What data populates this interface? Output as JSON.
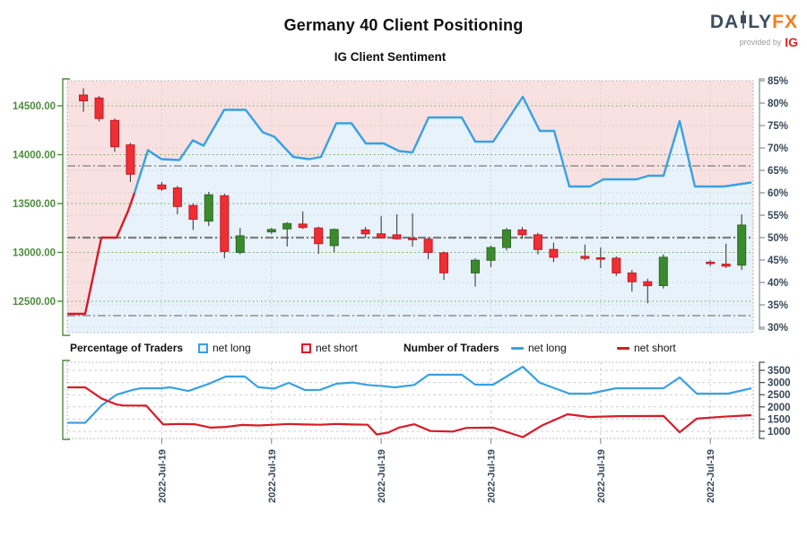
{
  "header": {
    "title": "Germany 40 Client Positioning",
    "subtitle": "IG Client Sentiment",
    "logo": {
      "daily": "DA",
      "ly": "LY",
      "fx": "FX",
      "provided_by": "provided by",
      "ig": "IG"
    }
  },
  "legend": {
    "pct_header": "Percentage of Traders",
    "num_header": "Number of Traders",
    "net_long": "net long",
    "net_short": "net short"
  },
  "colors": {
    "accent_blue": "#38a1e4",
    "accent_red": "#d81a28",
    "candle_red": "#ef2e35",
    "candle_red_edge": "#c41a22",
    "candle_green": "#3c8a2e",
    "candle_green_edge": "#2c6a21",
    "wick": "#3e3e3e",
    "pink_fill": "#f9e1e1",
    "blue_fill": "#e7f2fb",
    "axis_green": "#4c8c3c",
    "axis_navy": "#39485a",
    "grid_green": "#6aa74f",
    "grid_gray": "#cfcfcf",
    "ref_gray": "#7d7d7d",
    "border_gray": "#aaaaaa"
  },
  "chart_data": [
    {
      "type": "candlestick+line",
      "title": "Price candles with IG client sentiment (% net long)",
      "y_left": {
        "axis": "price",
        "tick_labels": [
          "14500.00",
          "14000.00",
          "13500.00",
          "13000.00",
          "12500.00"
        ],
        "tick_values": [
          14500,
          14000,
          13500,
          13000,
          12500
        ]
      },
      "y_right": {
        "axis": "percent",
        "range": [
          30,
          85
        ],
        "tick_labels": [
          "85%",
          "80%",
          "75%",
          "70%",
          "65%",
          "60%",
          "55%",
          "50%",
          "45%",
          "40%",
          "35%",
          "30%"
        ],
        "tick_values": [
          85,
          80,
          75,
          70,
          65,
          60,
          55,
          50,
          45,
          40,
          35,
          30
        ]
      },
      "grid_pct": [
        80,
        75,
        70,
        65,
        60,
        55,
        50,
        45,
        40,
        35,
        30
      ],
      "reference_lines_pct": [
        66,
        50,
        32.6
      ],
      "x_labels": [
        "2022-Jul-19",
        "2022-Jul-19",
        "2022-Jul-19",
        "2022-Jul-19",
        "2022-Jul-19",
        "2022-Jul-19"
      ],
      "x_tick_slots": [
        5,
        12,
        19,
        26,
        33,
        40
      ],
      "candles_format": [
        "slot",
        "open",
        "high",
        "low",
        "close"
      ],
      "candles": [
        [
          0,
          14610,
          14680,
          14440,
          14550
        ],
        [
          1,
          14580,
          14600,
          14340,
          14370
        ],
        [
          2,
          14350,
          14370,
          14030,
          14080
        ],
        [
          3,
          14100,
          14120,
          13720,
          13800
        ],
        [
          5,
          13690,
          13720,
          13630,
          13650
        ],
        [
          6,
          13660,
          13680,
          13390,
          13470
        ],
        [
          7,
          13480,
          13500,
          13230,
          13340
        ],
        [
          8,
          13320,
          13620,
          13270,
          13590
        ],
        [
          9,
          13580,
          13600,
          12940,
          13010
        ],
        [
          10,
          13000,
          13250,
          12980,
          13170
        ],
        [
          12,
          13210,
          13250,
          13190,
          13235
        ],
        [
          13,
          13240,
          13310,
          13060,
          13295
        ],
        [
          14,
          13290,
          13420,
          13240,
          13255
        ],
        [
          15,
          13250,
          13265,
          12985,
          13090
        ],
        [
          16,
          13070,
          13245,
          13000,
          13235
        ],
        [
          18,
          13230,
          13260,
          13150,
          13190
        ],
        [
          19,
          13190,
          13370,
          13140,
          13150
        ],
        [
          20,
          13180,
          13390,
          13130,
          13140
        ],
        [
          21,
          13145,
          13400,
          13060,
          13135
        ],
        [
          22,
          13135,
          13150,
          12930,
          13000
        ],
        [
          23,
          12995,
          13010,
          12720,
          12790
        ],
        [
          25,
          12790,
          12940,
          12650,
          12920
        ],
        [
          26,
          12920,
          13070,
          12850,
          13050
        ],
        [
          27,
          13050,
          13250,
          13020,
          13230
        ],
        [
          28,
          13230,
          13260,
          13140,
          13180
        ],
        [
          29,
          13180,
          13200,
          12980,
          13030
        ],
        [
          30,
          13030,
          13100,
          12900,
          12950
        ],
        [
          32,
          12960,
          13080,
          12920,
          12940
        ],
        [
          33,
          12945,
          13050,
          12840,
          12935
        ],
        [
          34,
          12940,
          12960,
          12760,
          12790
        ],
        [
          35,
          12790,
          12820,
          12600,
          12700
        ],
        [
          36,
          12700,
          12730,
          12480,
          12660
        ],
        [
          37,
          12660,
          12980,
          12630,
          12950
        ],
        [
          40,
          12900,
          12920,
          12860,
          12885
        ],
        [
          41,
          12880,
          13090,
          12840,
          12860
        ],
        [
          42,
          12870,
          13390,
          12820,
          13280
        ]
      ],
      "sentiment_pct": {
        "net_short_segment": [
          [
            0,
            33
          ],
          [
            20,
            33
          ],
          [
            38,
            50
          ],
          [
            55,
            50
          ],
          [
            68,
            56
          ],
          [
            75,
            60
          ]
        ],
        "net_long_segment": [
          [
            75,
            60
          ],
          [
            90,
            69.5
          ],
          [
            105,
            67.5
          ],
          [
            125,
            67.3
          ],
          [
            140,
            71.7
          ],
          [
            152,
            70.5
          ],
          [
            175,
            78.5
          ],
          [
            199,
            78.5
          ],
          [
            218,
            73.5
          ],
          [
            231,
            72.5
          ],
          [
            252,
            68
          ],
          [
            270,
            67.5
          ],
          [
            283,
            68
          ],
          [
            300,
            75.5
          ],
          [
            317,
            75.5
          ],
          [
            333,
            71
          ],
          [
            353,
            71
          ],
          [
            370,
            69.3
          ],
          [
            385,
            69
          ],
          [
            403,
            76.8
          ],
          [
            440,
            76.8
          ],
          [
            455,
            71.4
          ],
          [
            475,
            71.4
          ],
          [
            508,
            81.4
          ],
          [
            527,
            73.8
          ],
          [
            543,
            73.8
          ],
          [
            560,
            61.4
          ],
          [
            583,
            61.4
          ],
          [
            598,
            63
          ],
          [
            635,
            63
          ],
          [
            648,
            63.8
          ],
          [
            665,
            63.8
          ],
          [
            683,
            76
          ],
          [
            700,
            61.4
          ],
          [
            732,
            61.4
          ],
          [
            763,
            62.3
          ]
        ]
      }
    },
    {
      "type": "line",
      "title": "Number of traders",
      "y_right": {
        "tick_labels": [
          "3500",
          "3000",
          "2500",
          "2000",
          "1500",
          "1000"
        ],
        "tick_values": [
          3500,
          3000,
          2500,
          2000,
          1500,
          1000
        ]
      },
      "series": [
        {
          "name": "net long",
          "color_key": "accent_blue",
          "points": [
            [
              0,
              1350
            ],
            [
              20,
              1350
            ],
            [
              38,
              2050
            ],
            [
              55,
              2500
            ],
            [
              73,
              2700
            ],
            [
              82,
              2765
            ],
            [
              105,
              2765
            ],
            [
              115,
              2805
            ],
            [
              135,
              2650
            ],
            [
              158,
              2950
            ],
            [
              177,
              3245
            ],
            [
              198,
              3245
            ],
            [
              213,
              2810
            ],
            [
              231,
              2750
            ],
            [
              247,
              2990
            ],
            [
              265,
              2690
            ],
            [
              282,
              2700
            ],
            [
              300,
              2950
            ],
            [
              318,
              3000
            ],
            [
              335,
              2900
            ],
            [
              353,
              2850
            ],
            [
              365,
              2800
            ],
            [
              387,
              2900
            ],
            [
              403,
              3320
            ],
            [
              440,
              3320
            ],
            [
              455,
              2910
            ],
            [
              475,
              2910
            ],
            [
              508,
              3650
            ],
            [
              527,
              2990
            ],
            [
              560,
              2545
            ],
            [
              583,
              2545
            ],
            [
              612,
              2765
            ],
            [
              665,
              2765
            ],
            [
              683,
              3210
            ],
            [
              702,
              2545
            ],
            [
              737,
              2545
            ],
            [
              763,
              2765
            ]
          ]
        },
        {
          "name": "net short",
          "color_key": "accent_red",
          "points": [
            [
              0,
              2800
            ],
            [
              20,
              2800
            ],
            [
              38,
              2350
            ],
            [
              55,
              2100
            ],
            [
              62,
              2060
            ],
            [
              88,
              2050
            ],
            [
              107,
              1280
            ],
            [
              125,
              1300
            ],
            [
              142,
              1290
            ],
            [
              160,
              1150
            ],
            [
              177,
              1180
            ],
            [
              195,
              1260
            ],
            [
              213,
              1240
            ],
            [
              231,
              1270
            ],
            [
              247,
              1300
            ],
            [
              265,
              1280
            ],
            [
              282,
              1270
            ],
            [
              300,
              1300
            ],
            [
              318,
              1280
            ],
            [
              335,
              1270
            ],
            [
              345,
              870
            ],
            [
              358,
              950
            ],
            [
              370,
              1150
            ],
            [
              387,
              1290
            ],
            [
              405,
              1010
            ],
            [
              430,
              990
            ],
            [
              445,
              1140
            ],
            [
              475,
              1150
            ],
            [
              508,
              760
            ],
            [
              530,
              1250
            ],
            [
              558,
              1700
            ],
            [
              582,
              1590
            ],
            [
              615,
              1620
            ],
            [
              665,
              1630
            ],
            [
              683,
              960
            ],
            [
              702,
              1520
            ],
            [
              732,
              1600
            ],
            [
              763,
              1660
            ]
          ]
        }
      ]
    }
  ]
}
